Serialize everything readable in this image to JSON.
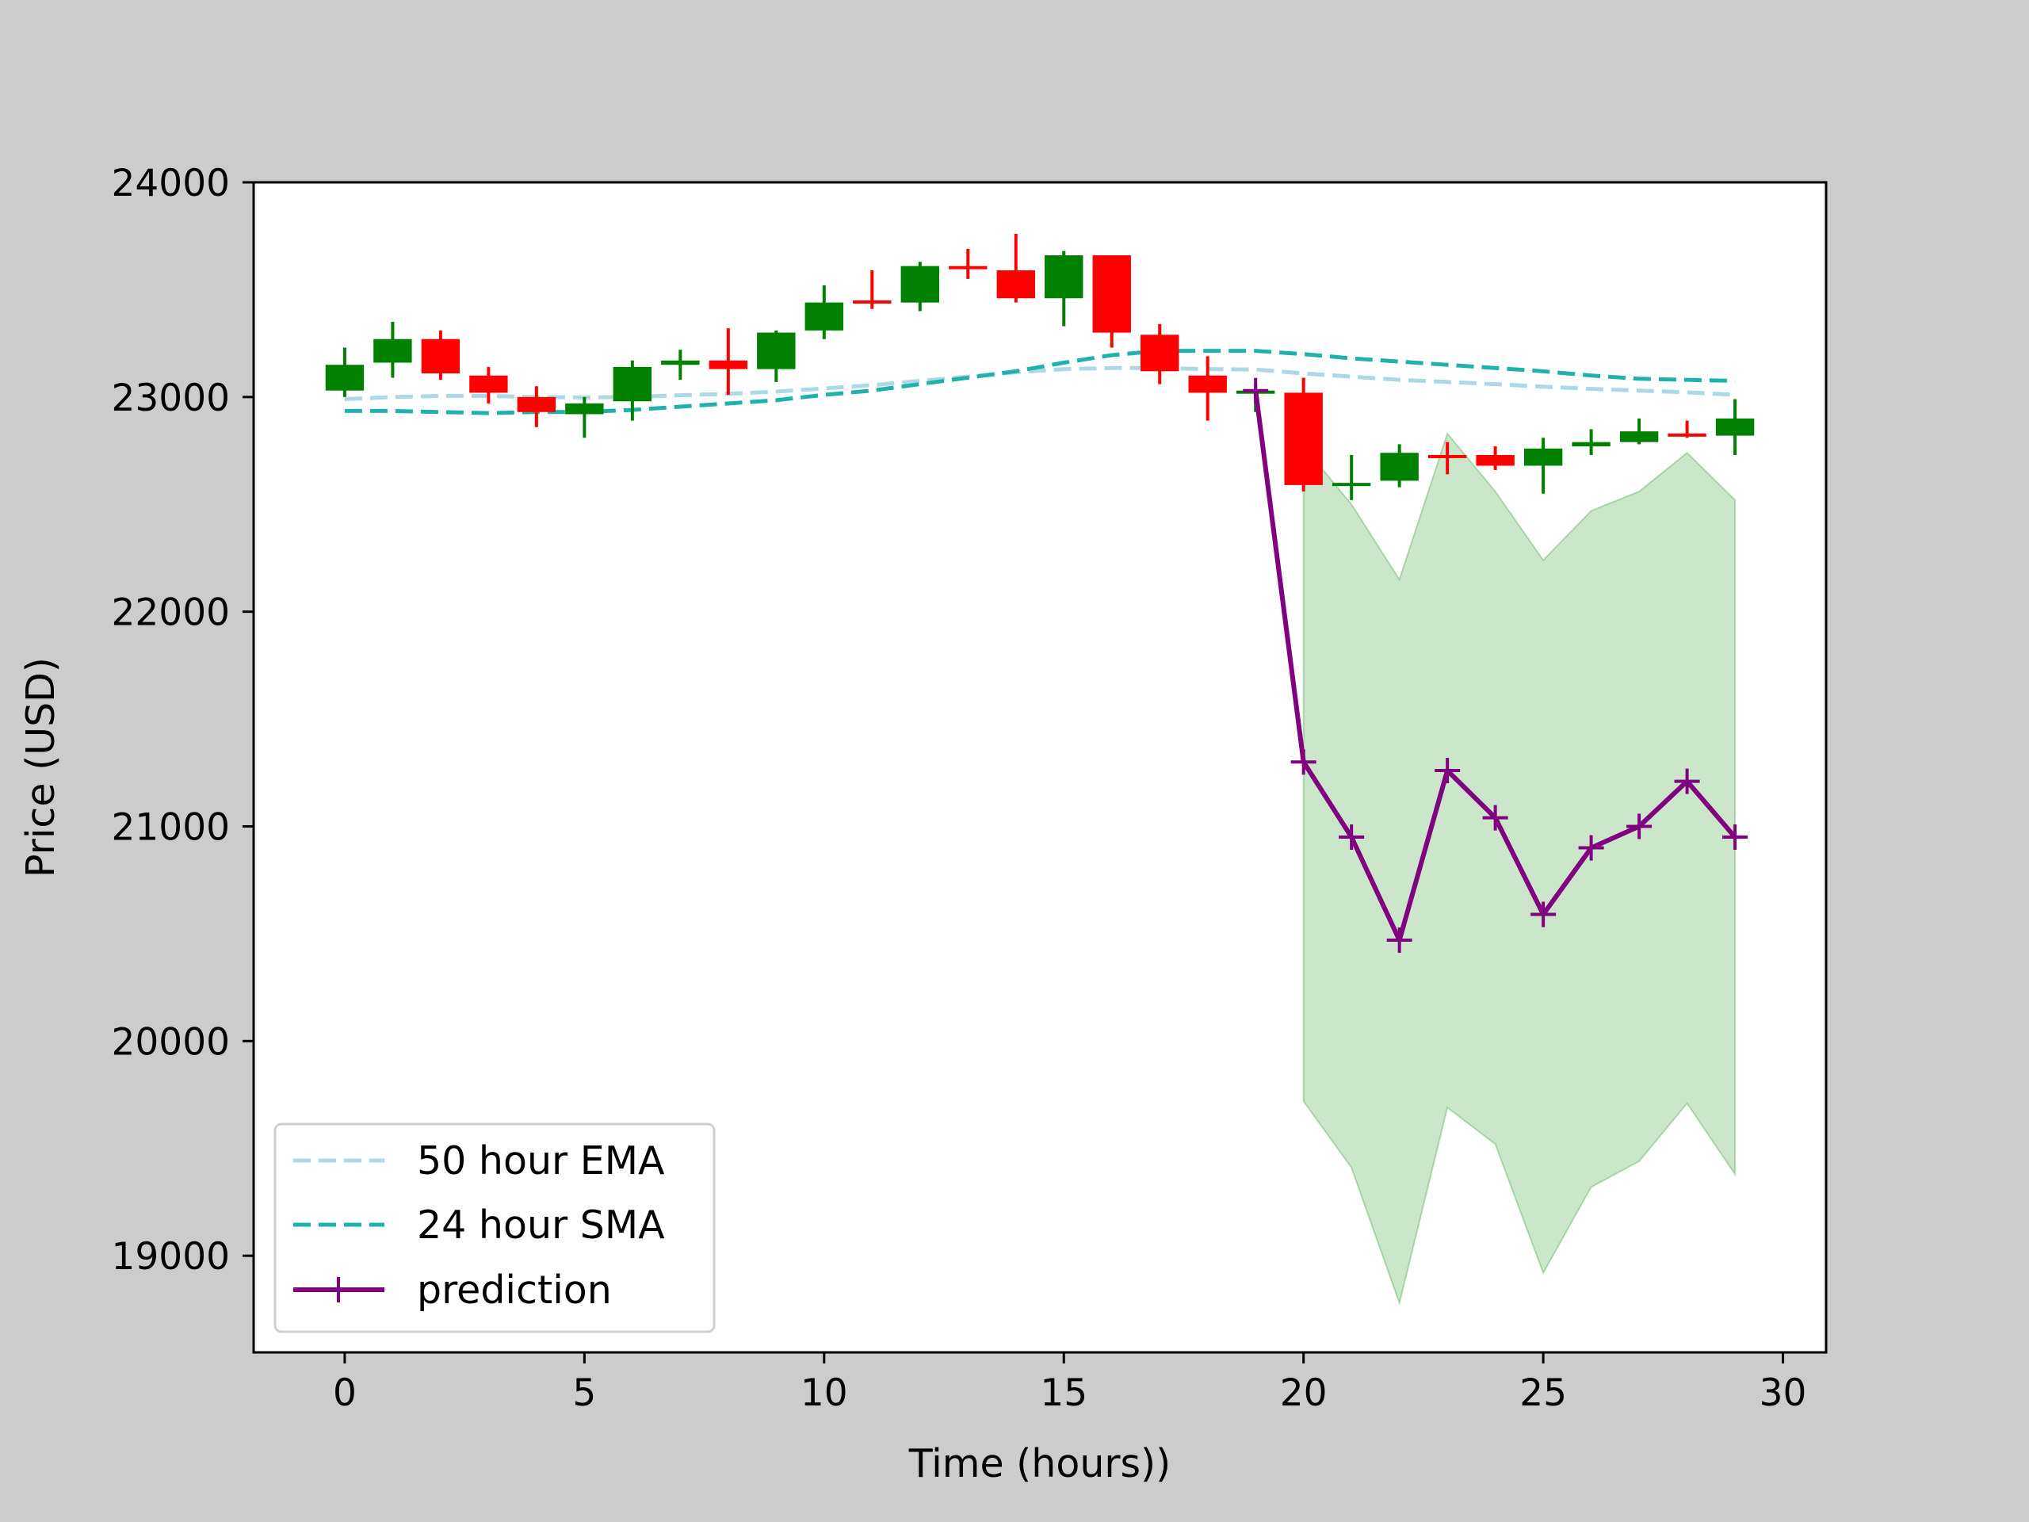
{
  "chart_data": {
    "type": "candlestick",
    "title": "",
    "xlabel": "Time (hours))",
    "ylabel": "Price (USD)",
    "xlim": [
      -1.9,
      30.9
    ],
    "ylim": [
      18550,
      24000
    ],
    "xticks": [
      0,
      5,
      10,
      15,
      20,
      25,
      30
    ],
    "yticks": [
      19000,
      20000,
      21000,
      22000,
      23000,
      24000
    ],
    "grid": false,
    "legend_position": "lower-left",
    "colors": {
      "up": "#008000",
      "down": "#ff0000",
      "ema": "#add8e6",
      "sma": "#20b2aa",
      "prediction": "#800080",
      "band_fill": "#008000",
      "figure_background": "#cccccc",
      "axes_background": "#ffffff"
    },
    "candles": [
      {
        "t": 0,
        "open": 23030,
        "high": 23230,
        "low": 23000,
        "close": 23150
      },
      {
        "t": 1,
        "open": 23160,
        "high": 23350,
        "low": 23090,
        "close": 23270
      },
      {
        "t": 2,
        "open": 23270,
        "high": 23310,
        "low": 23080,
        "close": 23110
      },
      {
        "t": 3,
        "open": 23100,
        "high": 23140,
        "low": 22970,
        "close": 23020
      },
      {
        "t": 4,
        "open": 23000,
        "high": 23050,
        "low": 22860,
        "close": 22930
      },
      {
        "t": 5,
        "open": 22920,
        "high": 23000,
        "low": 22810,
        "close": 22970
      },
      {
        "t": 6,
        "open": 22980,
        "high": 23170,
        "low": 22890,
        "close": 23140
      },
      {
        "t": 7,
        "open": 23150,
        "high": 23220,
        "low": 23080,
        "close": 23170
      },
      {
        "t": 8,
        "open": 23170,
        "high": 23320,
        "low": 23010,
        "close": 23130
      },
      {
        "t": 9,
        "open": 23130,
        "high": 23310,
        "low": 23070,
        "close": 23300
      },
      {
        "t": 10,
        "open": 23310,
        "high": 23520,
        "low": 23270,
        "close": 23440
      },
      {
        "t": 11,
        "open": 23450,
        "high": 23590,
        "low": 23410,
        "close": 23440
      },
      {
        "t": 12,
        "open": 23440,
        "high": 23630,
        "low": 23400,
        "close": 23610
      },
      {
        "t": 13,
        "open": 23610,
        "high": 23690,
        "low": 23550,
        "close": 23600
      },
      {
        "t": 14,
        "open": 23590,
        "high": 23760,
        "low": 23440,
        "close": 23460
      },
      {
        "t": 15,
        "open": 23460,
        "high": 23680,
        "low": 23330,
        "close": 23660
      },
      {
        "t": 16,
        "open": 23660,
        "high": 23660,
        "low": 23230,
        "close": 23300
      },
      {
        "t": 17,
        "open": 23290,
        "high": 23340,
        "low": 23060,
        "close": 23120
      },
      {
        "t": 18,
        "open": 23100,
        "high": 23190,
        "low": 22890,
        "close": 23020
      },
      {
        "t": 19,
        "open": 23020,
        "high": 23060,
        "low": 22930,
        "close": 23030
      },
      {
        "t": 20,
        "open": 23020,
        "high": 23090,
        "low": 22560,
        "close": 22590
      },
      {
        "t": 21,
        "open": 22590,
        "high": 22730,
        "low": 22520,
        "close": 22600
      },
      {
        "t": 22,
        "open": 22610,
        "high": 22780,
        "low": 22580,
        "close": 22740
      },
      {
        "t": 23,
        "open": 22730,
        "high": 22790,
        "low": 22640,
        "close": 22720
      },
      {
        "t": 24,
        "open": 22730,
        "high": 22770,
        "low": 22660,
        "close": 22680
      },
      {
        "t": 25,
        "open": 22680,
        "high": 22810,
        "low": 22550,
        "close": 22760
      },
      {
        "t": 26,
        "open": 22770,
        "high": 22850,
        "low": 22730,
        "close": 22790
      },
      {
        "t": 27,
        "open": 22790,
        "high": 22900,
        "low": 22780,
        "close": 22840
      },
      {
        "t": 28,
        "open": 22830,
        "high": 22890,
        "low": 22810,
        "close": 22820
      },
      {
        "t": 29,
        "open": 22820,
        "high": 22990,
        "low": 22730,
        "close": 22900
      }
    ],
    "series": [
      {
        "name": "50 hour EMA",
        "style": "dashed",
        "x": [
          0,
          1,
          2,
          3,
          4,
          5,
          6,
          7,
          8,
          9,
          10,
          11,
          12,
          13,
          14,
          15,
          16,
          17,
          18,
          19,
          20,
          21,
          22,
          23,
          24,
          25,
          26,
          27,
          28,
          29
        ],
        "y": [
          22990,
          23000,
          23005,
          23005,
          23000,
          22998,
          23000,
          23008,
          23015,
          23025,
          23040,
          23055,
          23075,
          23095,
          23115,
          23130,
          23135,
          23135,
          23130,
          23128,
          23110,
          23095,
          23080,
          23070,
          23060,
          23048,
          23038,
          23030,
          23022,
          23010
        ]
      },
      {
        "name": "24 hour SMA",
        "style": "dashed",
        "x": [
          0,
          1,
          2,
          3,
          4,
          5,
          6,
          7,
          8,
          9,
          10,
          11,
          12,
          13,
          14,
          15,
          16,
          17,
          18,
          19,
          20,
          21,
          22,
          23,
          24,
          25,
          26,
          27,
          28,
          29
        ],
        "y": [
          22935,
          22935,
          22930,
          22925,
          22930,
          22930,
          22940,
          22955,
          22970,
          22985,
          23010,
          23030,
          23060,
          23090,
          23120,
          23160,
          23195,
          23215,
          23215,
          23215,
          23200,
          23180,
          23165,
          23150,
          23135,
          23120,
          23100,
          23085,
          23080,
          23075
        ]
      },
      {
        "name": "prediction",
        "style": "solid",
        "marker": "+",
        "x": [
          19,
          20,
          21,
          22,
          23,
          24,
          25,
          26,
          27,
          28,
          29
        ],
        "y": [
          23030,
          21300,
          20950,
          20470,
          21260,
          21040,
          20590,
          20900,
          21000,
          21210,
          20950
        ]
      }
    ],
    "prediction_band": {
      "x": [
        20,
        21,
        22,
        23,
        24,
        25,
        26,
        27,
        28,
        29
      ],
      "upper": [
        22770,
        22500,
        22150,
        22830,
        22560,
        22240,
        22470,
        22560,
        22740,
        22520
      ],
      "lower": [
        19720,
        19410,
        18780,
        19690,
        19520,
        18920,
        19320,
        19440,
        19710,
        19380
      ]
    },
    "legend": [
      {
        "label": "50 hour EMA",
        "series": 0
      },
      {
        "label": "24 hour SMA",
        "series": 1
      },
      {
        "label": "prediction",
        "series": 2
      }
    ]
  }
}
